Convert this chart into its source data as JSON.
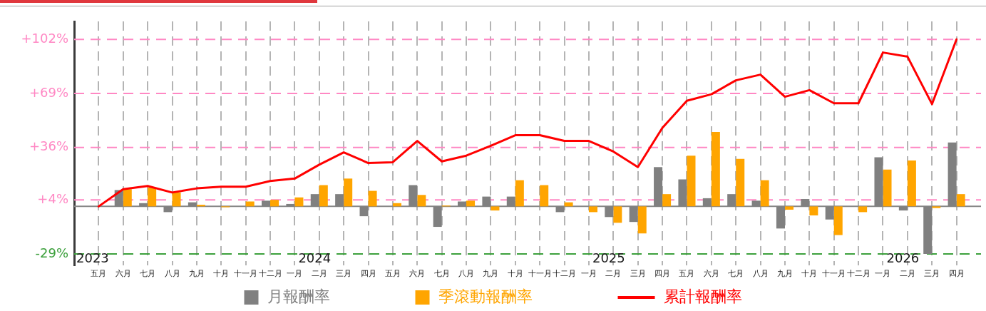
{
  "chart_data": {
    "type": "bar",
    "categories": [
      "五月",
      "六月",
      "七月",
      "八月",
      "九月",
      "十月",
      "十一月",
      "十二月",
      "一月",
      "二月",
      "三月",
      "四月",
      "五月",
      "六月",
      "七月",
      "八月",
      "九月",
      "十月",
      "十一月",
      "十二月",
      "一月",
      "二月",
      "三月",
      "四月",
      "五月",
      "六月",
      "七月",
      "八月",
      "九月",
      "十月",
      "十一月",
      "十二月",
      "一月",
      "二月",
      "三月",
      "四月"
    ],
    "ylim": [
      -36,
      113
    ],
    "yticks": [
      {
        "value": 102,
        "label": "+102%"
      },
      {
        "value": 69,
        "label": "+69%"
      },
      {
        "value": 36,
        "label": "+36%"
      },
      {
        "value": 4,
        "label": "+4%"
      },
      {
        "value": -29,
        "label": "-29%"
      }
    ],
    "series": [
      {
        "name": "月報酬率",
        "color": "#808080",
        "values": [
          null,
          10,
          2,
          -3.5,
          2.5,
          0,
          0,
          3.5,
          1.5,
          7.5,
          7.5,
          -6,
          0,
          13,
          -12.5,
          3,
          6,
          6,
          0,
          -3.5,
          0,
          -6.5,
          -9.5,
          24,
          16.5,
          5,
          7.5,
          3.5,
          -13.5,
          4.5,
          -8,
          0,
          30,
          -2.5,
          -29,
          39
        ]
      },
      {
        "name": "季滾動報酬率",
        "color": "#ffa500",
        "values": [
          null,
          10.5,
          11.5,
          8.5,
          1,
          -0.5,
          3,
          4,
          5.5,
          13,
          17,
          9.5,
          2,
          7,
          0.5,
          3.5,
          -2.5,
          16,
          13,
          2.5,
          -3.5,
          -10,
          -16.5,
          7.5,
          31,
          45.5,
          29,
          16,
          -2,
          -5.5,
          -17.5,
          -3.5,
          22.5,
          28,
          -1,
          7.5
        ]
      },
      {
        "name": "累計報酬率",
        "type": "line",
        "color": "#ff0000",
        "values": [
          0,
          10.5,
          12.5,
          8.5,
          11,
          12,
          12,
          15.5,
          17,
          25.5,
          33,
          26.5,
          27,
          40,
          27.5,
          31,
          37,
          43.5,
          43.5,
          40,
          40,
          33.5,
          24,
          48,
          64.5,
          68.5,
          77,
          80.5,
          67,
          71,
          63,
          63,
          94,
          91.5,
          62.5,
          102
        ]
      }
    ],
    "ref_lines": [
      {
        "axis": "y",
        "value": 102,
        "color": "#ff88c4",
        "line_style": "dashed"
      },
      {
        "axis": "y",
        "value": 69,
        "color": "#ff88c4",
        "line_style": "dashed"
      },
      {
        "axis": "y",
        "value": 36,
        "color": "#ff88c4",
        "line_style": "dashed"
      },
      {
        "axis": "y",
        "value": 4,
        "color": "#ff88c4",
        "line_style": "dashed"
      },
      {
        "axis": "y",
        "value": -29,
        "color": "#3ca03c",
        "line_style": "dashed"
      },
      {
        "axis": "y",
        "value": 0,
        "color": "#888888",
        "line_style": "solid"
      }
    ],
    "annotations": [
      "2023",
      "2024",
      "2025",
      "2026"
    ],
    "grid": "x",
    "legend": "bottom"
  }
}
